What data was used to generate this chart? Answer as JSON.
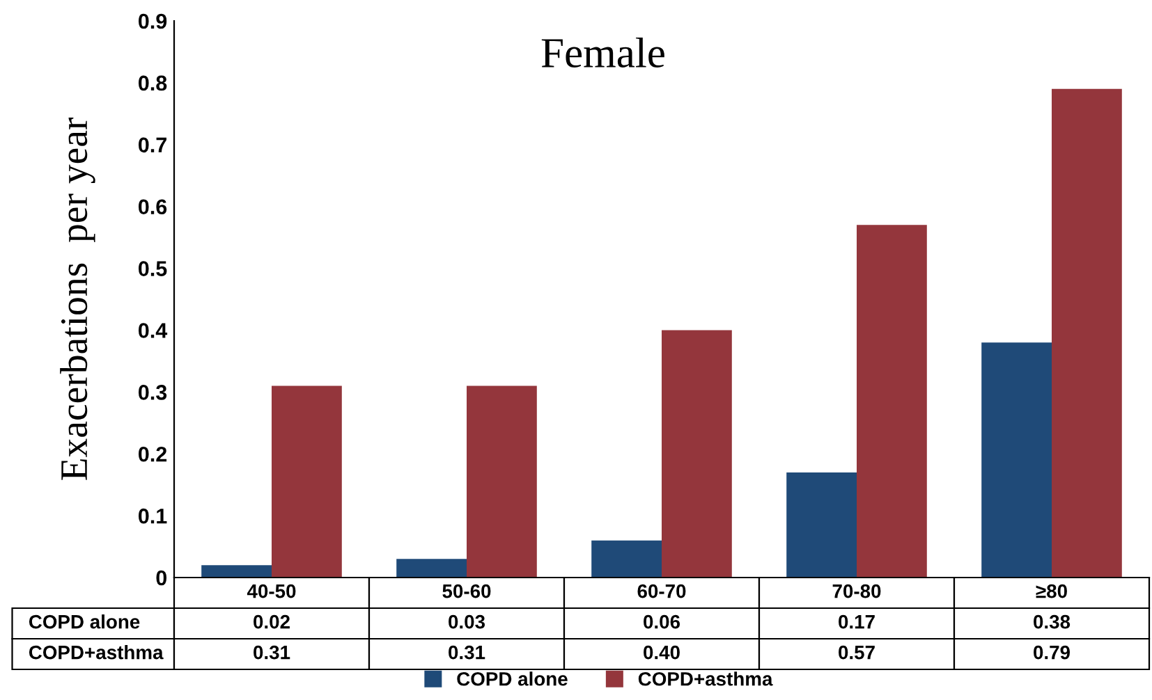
{
  "chart_data": {
    "type": "bar",
    "title": "Female",
    "ylabel": "Exacerbations  per year",
    "categories": [
      "40-50",
      "50-60",
      "60-70",
      "70-80",
      "≥80"
    ],
    "series": [
      {
        "name": "COPD alone",
        "color": "#1f4a78",
        "values": [
          0.02,
          0.03,
          0.06,
          0.17,
          0.38
        ],
        "value_labels": [
          "0.02",
          "0.03",
          "0.06",
          "0.17",
          "0.38"
        ]
      },
      {
        "name": "COPD+asthma",
        "color": "#94363c",
        "values": [
          0.31,
          0.31,
          0.4,
          0.57,
          0.79
        ],
        "value_labels": [
          "0.31",
          "0.31",
          "0.40",
          "0.57",
          "0.79"
        ]
      }
    ],
    "ylim": [
      0,
      0.9
    ],
    "yticks": [
      0,
      0.1,
      0.2,
      0.3,
      0.4,
      0.5,
      0.6,
      0.7,
      0.8,
      0.9
    ],
    "grid": false,
    "legend": "bottom"
  }
}
